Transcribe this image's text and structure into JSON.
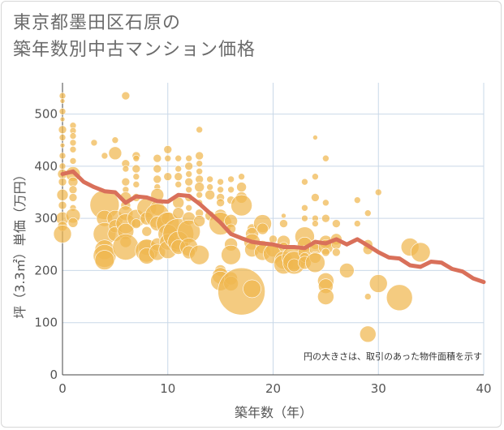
{
  "title": "東京都墨田区石原の\n築年数別中古マンション価格",
  "chart_data": {
    "type": "scatter",
    "title": "東京都墨田区石原の築年数別中古マンション価格",
    "xlabel": "築年数（年）",
    "ylabel": "坪（3.3㎡）単価（万円）",
    "xlim": [
      0,
      40
    ],
    "ylim": [
      0,
      560
    ],
    "x_ticks": [
      "0",
      "10",
      "20",
      "30",
      "40"
    ],
    "y_ticks": [
      "0",
      "100",
      "200",
      "300",
      "400",
      "500"
    ],
    "grid": true,
    "annotation": "円の大きさは、取引のあった物件面積を示す",
    "bubble_color": "#f0b74f",
    "line_color": "#d9705a",
    "series": [
      {
        "type": "bubble",
        "points": [
          [
            0,
            535,
            4
          ],
          [
            0,
            525,
            3
          ],
          [
            0,
            505,
            4
          ],
          [
            0,
            490,
            3
          ],
          [
            0,
            470,
            5
          ],
          [
            0,
            455,
            4
          ],
          [
            0,
            440,
            3
          ],
          [
            0,
            420,
            4
          ],
          [
            0,
            400,
            4
          ],
          [
            0,
            385,
            6
          ],
          [
            0,
            370,
            5
          ],
          [
            0,
            345,
            7
          ],
          [
            0,
            325,
            5
          ],
          [
            0,
            300,
            8
          ],
          [
            0,
            285,
            6
          ],
          [
            0,
            270,
            11
          ],
          [
            1,
            478,
            4
          ],
          [
            1,
            468,
            4
          ],
          [
            1,
            458,
            4
          ],
          [
            1,
            445,
            4
          ],
          [
            1,
            432,
            4
          ],
          [
            1,
            410,
            4
          ],
          [
            1,
            385,
            9
          ],
          [
            1,
            370,
            6
          ],
          [
            1,
            355,
            5
          ],
          [
            1,
            340,
            5
          ],
          [
            1,
            320,
            4
          ],
          [
            1,
            305,
            9
          ],
          [
            1,
            292,
            6
          ],
          [
            3,
            445,
            4
          ],
          [
            4,
            420,
            4
          ],
          [
            4,
            326,
            18
          ],
          [
            4,
            300,
            10
          ],
          [
            4,
            270,
            14
          ],
          [
            4,
            240,
            12
          ],
          [
            4,
            228,
            14
          ],
          [
            4,
            220,
            12
          ],
          [
            5,
            450,
            4
          ],
          [
            5,
            425,
            8
          ],
          [
            5,
            300,
            10
          ],
          [
            5,
            285,
            8
          ],
          [
            5,
            270,
            9
          ],
          [
            6,
            535,
            5
          ],
          [
            6,
            405,
            5
          ],
          [
            6,
            395,
            4
          ],
          [
            6,
            370,
            5
          ],
          [
            6,
            355,
            4
          ],
          [
            6,
            340,
            7
          ],
          [
            6,
            325,
            6
          ],
          [
            6,
            310,
            9
          ],
          [
            6,
            290,
            12
          ],
          [
            6,
            275,
            10
          ],
          [
            6,
            255,
            7
          ],
          [
            6,
            245,
            16
          ],
          [
            7,
            420,
            5
          ],
          [
            7,
            415,
            4
          ],
          [
            7,
            395,
            5
          ],
          [
            7,
            380,
            4
          ],
          [
            7,
            365,
            4
          ],
          [
            7,
            340,
            5
          ],
          [
            7,
            300,
            11
          ],
          [
            7,
            290,
            6
          ],
          [
            8,
            320,
            12
          ],
          [
            8,
            300,
            8
          ],
          [
            8,
            275,
            6
          ],
          [
            8,
            245,
            10
          ],
          [
            8,
            238,
            14
          ],
          [
            8,
            228,
            10
          ],
          [
            9,
            415,
            5
          ],
          [
            9,
            395,
            5
          ],
          [
            9,
            375,
            5
          ],
          [
            9,
            360,
            4
          ],
          [
            9,
            345,
            8
          ],
          [
            9,
            320,
            9
          ],
          [
            9,
            305,
            15
          ],
          [
            9,
            290,
            9
          ],
          [
            9,
            250,
            8
          ],
          [
            9,
            235,
            10
          ],
          [
            10,
            432,
            5
          ],
          [
            10,
            415,
            4
          ],
          [
            10,
            380,
            5
          ],
          [
            10,
            300,
            8
          ],
          [
            10,
            290,
            14
          ],
          [
            10,
            270,
            12
          ],
          [
            10,
            255,
            10
          ],
          [
            10,
            240,
            11
          ],
          [
            11,
            415,
            4
          ],
          [
            11,
            395,
            4
          ],
          [
            11,
            380,
            5
          ],
          [
            11,
            365,
            4
          ],
          [
            11,
            330,
            7
          ],
          [
            11,
            310,
            7
          ],
          [
            11,
            270,
            19
          ],
          [
            11,
            255,
            13
          ],
          [
            11,
            245,
            9
          ],
          [
            12,
            415,
            4
          ],
          [
            12,
            400,
            5
          ],
          [
            12,
            385,
            4
          ],
          [
            12,
            370,
            5
          ],
          [
            12,
            355,
            4
          ],
          [
            12,
            340,
            5
          ],
          [
            12,
            320,
            4
          ],
          [
            12,
            300,
            8
          ],
          [
            12,
            275,
            14
          ],
          [
            12,
            245,
            11
          ],
          [
            12,
            235,
            8
          ],
          [
            13,
            470,
            4
          ],
          [
            13,
            420,
            5
          ],
          [
            13,
            405,
            4
          ],
          [
            13,
            390,
            4
          ],
          [
            13,
            375,
            5
          ],
          [
            13,
            360,
            6
          ],
          [
            13,
            345,
            4
          ],
          [
            13,
            330,
            4
          ],
          [
            13,
            310,
            5
          ],
          [
            13,
            295,
            7
          ],
          [
            13,
            230,
            12
          ],
          [
            14,
            375,
            4
          ],
          [
            14,
            360,
            4
          ],
          [
            14,
            345,
            6
          ],
          [
            14,
            305,
            6
          ],
          [
            15,
            370,
            4
          ],
          [
            15,
            355,
            4
          ],
          [
            15,
            340,
            5
          ],
          [
            15,
            330,
            5
          ],
          [
            15,
            305,
            8
          ],
          [
            15,
            290,
            14
          ],
          [
            15,
            200,
            7
          ],
          [
            15,
            190,
            10
          ],
          [
            15,
            180,
            12
          ],
          [
            16,
            375,
            4
          ],
          [
            16,
            355,
            4
          ],
          [
            16,
            335,
            5
          ],
          [
            16,
            295,
            8
          ],
          [
            16,
            280,
            6
          ],
          [
            16,
            250,
            8
          ],
          [
            16,
            230,
            12
          ],
          [
            16,
            185,
            8
          ],
          [
            16,
            175,
            9
          ],
          [
            17,
            380,
            4
          ],
          [
            17,
            360,
            6
          ],
          [
            17,
            340,
            7
          ],
          [
            17,
            325,
            13
          ],
          [
            17,
            160,
            29
          ],
          [
            18,
            280,
            6
          ],
          [
            18,
            270,
            8
          ],
          [
            18,
            255,
            10
          ],
          [
            18,
            240,
            9
          ],
          [
            18,
            165,
            11
          ],
          [
            19,
            290,
            11
          ],
          [
            19,
            280,
            7
          ],
          [
            19,
            245,
            8
          ],
          [
            19,
            235,
            10
          ],
          [
            20,
            260,
            5
          ],
          [
            20,
            240,
            9
          ],
          [
            20,
            232,
            12
          ],
          [
            21,
            305,
            3
          ],
          [
            21,
            290,
            5
          ],
          [
            21,
            255,
            8
          ],
          [
            21,
            245,
            6
          ],
          [
            21,
            220,
            11
          ],
          [
            21,
            212,
            12
          ],
          [
            22,
            225,
            15
          ],
          [
            22,
            215,
            14
          ],
          [
            22,
            210,
            8
          ],
          [
            23,
            370,
            4
          ],
          [
            23,
            320,
            4
          ],
          [
            23,
            300,
            4
          ],
          [
            23,
            265,
            12
          ],
          [
            23,
            250,
            9
          ],
          [
            23,
            235,
            8
          ],
          [
            23,
            225,
            6
          ],
          [
            23,
            215,
            8
          ],
          [
            24,
            455,
            3
          ],
          [
            24,
            380,
            4
          ],
          [
            24,
            340,
            5
          ],
          [
            24,
            300,
            4
          ],
          [
            24,
            290,
            4
          ],
          [
            24,
            250,
            6
          ],
          [
            24,
            240,
            7
          ],
          [
            24,
            225,
            7
          ],
          [
            24,
            215,
            12
          ],
          [
            25,
            415,
            4
          ],
          [
            25,
            330,
            4
          ],
          [
            25,
            300,
            5
          ],
          [
            25,
            255,
            8
          ],
          [
            25,
            245,
            9
          ],
          [
            25,
            235,
            5
          ],
          [
            25,
            180,
            10
          ],
          [
            25,
            170,
            9
          ],
          [
            25,
            150,
            10
          ],
          [
            26,
            290,
            5
          ],
          [
            26,
            260,
            7
          ],
          [
            26,
            250,
            6
          ],
          [
            26,
            235,
            5
          ],
          [
            27,
            200,
            9
          ],
          [
            28,
            335,
            4
          ],
          [
            28,
            290,
            4
          ],
          [
            29,
            310,
            4
          ],
          [
            29,
            250,
            6
          ],
          [
            29,
            240,
            6
          ],
          [
            29,
            150,
            4
          ],
          [
            29,
            78,
            10
          ],
          [
            30,
            350,
            4
          ],
          [
            30,
            175,
            11
          ],
          [
            32,
            148,
            16
          ],
          [
            33,
            245,
            11
          ],
          [
            34,
            235,
            12
          ]
        ]
      },
      {
        "type": "line",
        "points": [
          [
            0,
            385
          ],
          [
            1,
            390
          ],
          [
            2,
            370
          ],
          [
            3,
            360
          ],
          [
            4,
            352
          ],
          [
            5,
            350
          ],
          [
            6,
            330
          ],
          [
            7,
            342
          ],
          [
            8,
            340
          ],
          [
            9,
            333
          ],
          [
            10,
            332
          ],
          [
            11,
            345
          ],
          [
            12,
            343
          ],
          [
            13,
            328
          ],
          [
            14,
            310
          ],
          [
            15,
            292
          ],
          [
            16,
            270
          ],
          [
            17,
            262
          ],
          [
            18,
            255
          ],
          [
            19,
            252
          ],
          [
            20,
            250
          ],
          [
            21,
            245
          ],
          [
            22,
            245
          ],
          [
            23,
            243
          ],
          [
            24,
            255
          ],
          [
            25,
            252
          ],
          [
            26,
            260
          ],
          [
            27,
            250
          ],
          [
            28,
            260
          ],
          [
            29,
            248
          ],
          [
            30,
            235
          ],
          [
            31,
            225
          ],
          [
            32,
            223
          ],
          [
            33,
            210
          ],
          [
            34,
            207
          ],
          [
            35,
            217
          ],
          [
            36,
            215
          ],
          [
            37,
            203
          ],
          [
            38,
            198
          ],
          [
            39,
            185
          ],
          [
            40,
            178
          ]
        ]
      }
    ]
  }
}
